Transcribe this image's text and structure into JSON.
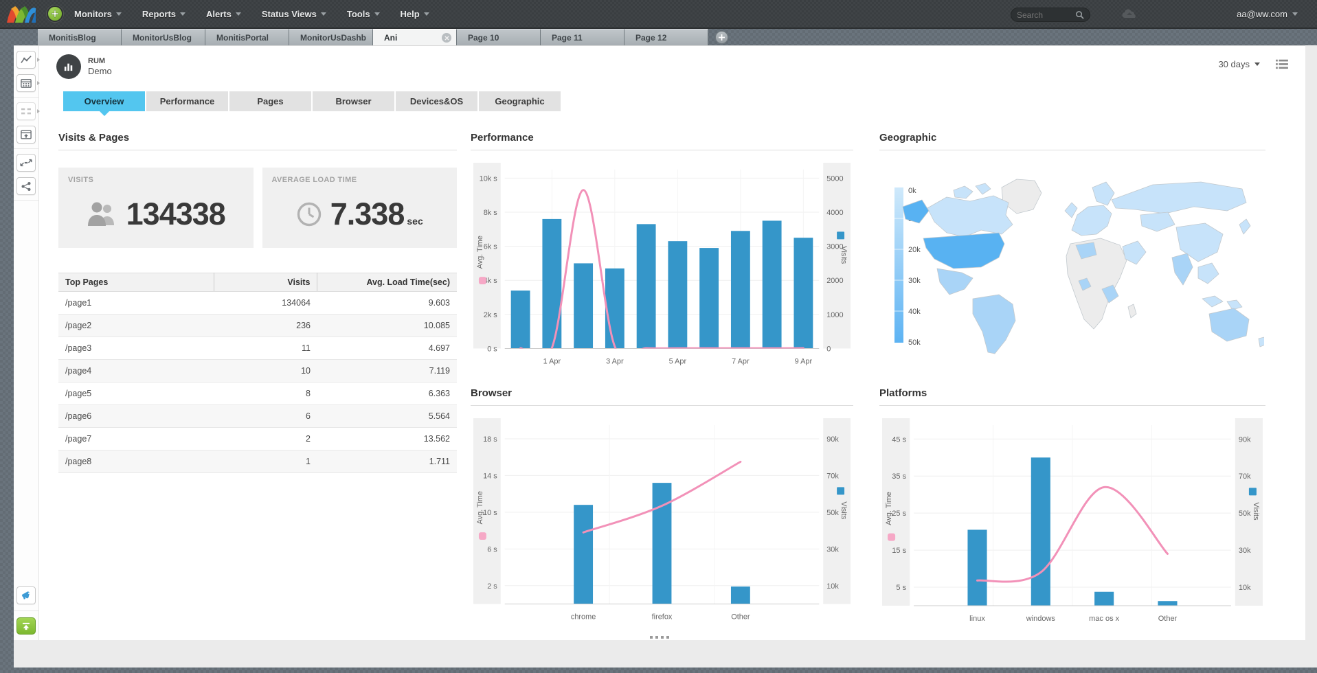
{
  "navbar": {
    "menus": [
      {
        "label": "Monitors"
      },
      {
        "label": "Reports"
      },
      {
        "label": "Alerts"
      },
      {
        "label": "Status Views"
      },
      {
        "label": "Tools"
      },
      {
        "label": "Help"
      }
    ],
    "search_placeholder": "Search",
    "user": "aa@ww.com"
  },
  "tabstrip": {
    "tabs": [
      {
        "label": "MonitisBlog"
      },
      {
        "label": "MonitorUsBlog"
      },
      {
        "label": "MonitisPortal"
      },
      {
        "label": "MonitorUsDashb"
      },
      {
        "label": "Ani"
      },
      {
        "label": "Page 10"
      },
      {
        "label": "Page 11"
      },
      {
        "label": "Page 12"
      }
    ],
    "active_tab": "Ani"
  },
  "sidebar": {
    "icons": [
      "line-chart",
      "calendar",
      "widgets",
      "window-export",
      "expand",
      "share",
      "megaphone",
      "publish"
    ]
  },
  "page": {
    "monitor_type": "RUM",
    "monitor_name": "Demo",
    "range_label": "30 days",
    "tabs": [
      {
        "label": "Overview"
      },
      {
        "label": "Performance"
      },
      {
        "label": "Pages"
      },
      {
        "label": "Browser"
      },
      {
        "label": "Devices&OS"
      },
      {
        "label": "Geographic"
      }
    ],
    "active_tab": "Overview"
  },
  "visits_pages": {
    "title": "Visits & Pages",
    "visits_label": "VISITS",
    "visits_value": "134338",
    "avg_load_label": "AVERAGE LOAD TIME",
    "avg_load_value": "7.338",
    "avg_load_unit": "sec",
    "table": {
      "columns": [
        "Top Pages",
        "Visits",
        "Avg. Load Time(sec)"
      ],
      "rows": [
        [
          "/page1",
          "134064",
          "9.603"
        ],
        [
          "/page2",
          "236",
          "10.085"
        ],
        [
          "/page3",
          "11",
          "4.697"
        ],
        [
          "/page4",
          "10",
          "7.119"
        ],
        [
          "/page5",
          "8",
          "6.363"
        ],
        [
          "/page6",
          "6",
          "5.564"
        ],
        [
          "/page7",
          "2",
          "13.562"
        ],
        [
          "/page8",
          "1",
          "1.711"
        ]
      ]
    }
  },
  "sections": {
    "performance": "Performance",
    "geographic": "Geographic",
    "browser": "Browser",
    "platforms": "Platforms"
  },
  "colors": {
    "accent_cyan": "#53c6ef",
    "bar_blue": "#3596c9",
    "line_pink": "#f291b8",
    "legend_pink": "#f6a8c6",
    "map_dark": "#58b2f2",
    "map_mid": "#a9d4f7",
    "map_light": "#c7e3fa",
    "map_gray": "#ececec",
    "scale_top": "#cfe9fb",
    "scale_bottom": "#5db3f3"
  },
  "chart_data": [
    {
      "id": "performance",
      "type": "bar+line",
      "center_mode": "flush",
      "left_axis": {
        "label": "Avg. Time",
        "ticks": [
          "0 s",
          "2k s",
          "4k s",
          "6k s",
          "8k s",
          "10k s"
        ],
        "tick_values": [
          0,
          2000,
          4000,
          6000,
          8000,
          10000
        ],
        "max": 10500
      },
      "right_axis": {
        "label": "Visits",
        "ticks": [
          "0",
          "1000",
          "2000",
          "3000",
          "4000",
          "5000"
        ],
        "tick_values": [
          0,
          1000,
          2000,
          3000,
          4000,
          5000
        ],
        "max": 5250
      },
      "x_ticks": [
        {
          "label": "1 Apr",
          "bar_index": 1
        },
        {
          "label": "3 Apr",
          "bar_index": 3
        },
        {
          "label": "5 Apr",
          "bar_index": 5
        },
        {
          "label": "7 Apr",
          "bar_index": 7
        },
        {
          "label": "9 Apr",
          "bar_index": 9
        }
      ],
      "bars": {
        "name": "Visits",
        "axis": "right",
        "values": [
          1700,
          3800,
          2500,
          2350,
          3650,
          3150,
          2950,
          3450,
          3750,
          3250
        ]
      },
      "line": {
        "name": "Avg. Time",
        "axis": "left",
        "values": [
          20,
          40,
          9300,
          120,
          20,
          15,
          15,
          15,
          15,
          20
        ]
      }
    },
    {
      "id": "browser",
      "type": "bar+line",
      "center_mode": "padded",
      "categories": [
        "chrome",
        "firefox",
        "Other"
      ],
      "left_axis": {
        "label": "Avg. Time",
        "ticks": [
          "2 s",
          "6 s",
          "10 s",
          "14 s",
          "18 s"
        ],
        "tick_values": [
          2,
          6,
          10,
          14,
          18
        ],
        "max": 19.5
      },
      "right_axis": {
        "label": "Visits",
        "ticks": [
          "10k",
          "30k",
          "50k",
          "70k",
          "90k"
        ],
        "tick_values": [
          10000,
          30000,
          50000,
          70000,
          90000
        ],
        "max": 97500
      },
      "bars": {
        "name": "Visits",
        "axis": "right",
        "values": [
          54000,
          66000,
          9500
        ]
      },
      "line": {
        "name": "Avg. Time",
        "axis": "left",
        "values": [
          7.8,
          10.7,
          15.5
        ]
      }
    },
    {
      "id": "platforms",
      "type": "bar+line",
      "center_mode": "padded",
      "categories": [
        "linux",
        "windows",
        "mac os x",
        "Other"
      ],
      "left_axis": {
        "label": "Avg. Time",
        "ticks": [
          "5 s",
          "15 s",
          "25 s",
          "35 s",
          "45 s"
        ],
        "tick_values": [
          5,
          15,
          25,
          35,
          45
        ],
        "max": 48.75
      },
      "right_axis": {
        "label": "Visits",
        "ticks": [
          "10k",
          "30k",
          "50k",
          "70k",
          "90k"
        ],
        "tick_values": [
          10000,
          30000,
          50000,
          70000,
          90000
        ],
        "max": 97500
      },
      "bars": {
        "name": "Visits",
        "axis": "right",
        "values": [
          41000,
          80000,
          7500,
          2500
        ]
      },
      "line": {
        "name": "Avg. Time",
        "axis": "left",
        "values": [
          6.8,
          9,
          32,
          14
        ]
      }
    },
    {
      "id": "geographic",
      "type": "choropleth",
      "scale_ticks": [
        "0k",
        "10k",
        "20k",
        "30k",
        "40k",
        "50k"
      ],
      "highlights": {
        "united-states": "high",
        "most-countries": "low",
        "greenland-africa": "no-data"
      }
    }
  ]
}
